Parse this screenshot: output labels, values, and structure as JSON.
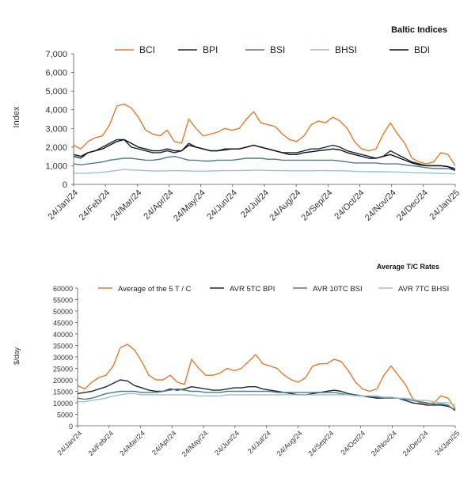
{
  "chart_data": [
    {
      "type": "line",
      "title": "Baltic Indices",
      "ylabel": "Index",
      "xlabel": "",
      "ylim": [
        0,
        7000
      ],
      "yticks": [
        "0",
        "1,000",
        "2,000",
        "3,000",
        "4,000",
        "5,000",
        "6,000",
        "7,000"
      ],
      "xticks": [
        "24/Jan/24",
        "24/Feb/24",
        "24/Mar/24",
        "24/Apr/24",
        "24/May/24",
        "24/Jun/24",
        "24/Jul/24",
        "24/Aug/24",
        "24/Sep/24",
        "24/Oct/24",
        "24/Nov/24",
        "24/Dec/24",
        "24/Jan/25"
      ],
      "legend_position": "top",
      "grid": false,
      "series": [
        {
          "name": "BCI",
          "color": "#e07b2e",
          "values": [
            2100,
            1900,
            2300,
            2500,
            2600,
            3200,
            4200,
            4300,
            4100,
            3600,
            2900,
            2700,
            2600,
            2900,
            2300,
            2200,
            3500,
            3000,
            2600,
            2700,
            2800,
            3000,
            2900,
            3000,
            3500,
            3900,
            3300,
            3200,
            3100,
            2700,
            2400,
            2300,
            2600,
            3200,
            3400,
            3300,
            3600,
            3400,
            3000,
            2300,
            1900,
            1800,
            1900,
            2700,
            3300,
            2700,
            2200,
            1400,
            1200,
            1100,
            1200,
            1700,
            1600,
            1000
          ]
        },
        {
          "name": "BPI",
          "color": "#1b2a38",
          "values": [
            1500,
            1400,
            1700,
            1800,
            2000,
            2200,
            2400,
            2400,
            2000,
            1900,
            1800,
            1700,
            1700,
            1800,
            1700,
            1800,
            2200,
            2000,
            1900,
            1800,
            1800,
            1900,
            1900,
            1900,
            2000,
            2100,
            2000,
            1900,
            1800,
            1700,
            1700,
            1700,
            1800,
            1900,
            1900,
            2000,
            2100,
            2000,
            1800,
            1700,
            1600,
            1500,
            1400,
            1500,
            1800,
            1600,
            1400,
            1200,
            1100,
            1000,
            1000,
            1000,
            950,
            850
          ]
        },
        {
          "name": "BSI",
          "color": "#4f7b86",
          "values": [
            1100,
            1050,
            1100,
            1150,
            1200,
            1300,
            1350,
            1400,
            1400,
            1350,
            1300,
            1300,
            1350,
            1450,
            1500,
            1400,
            1300,
            1300,
            1250,
            1250,
            1300,
            1300,
            1300,
            1350,
            1400,
            1400,
            1400,
            1350,
            1350,
            1300,
            1300,
            1300,
            1300,
            1300,
            1300,
            1300,
            1300,
            1250,
            1200,
            1150,
            1150,
            1150,
            1150,
            1100,
            1100,
            1100,
            1050,
            1000,
            950,
            900,
            850,
            850,
            850,
            750
          ]
        },
        {
          "name": "BHSI",
          "color": "#9cc4c8",
          "values": [
            600,
            590,
            600,
            620,
            650,
            700,
            750,
            800,
            770,
            760,
            740,
            720,
            720,
            730,
            740,
            730,
            720,
            710,
            710,
            720,
            730,
            740,
            740,
            740,
            750,
            760,
            760,
            750,
            740,
            740,
            730,
            730,
            730,
            730,
            740,
            740,
            730,
            730,
            720,
            700,
            690,
            680,
            680,
            680,
            670,
            660,
            650,
            630,
            620,
            610,
            600,
            590,
            580,
            560
          ]
        },
        {
          "name": "BDI",
          "color": "#111111",
          "values": [
            1600,
            1500,
            1700,
            1800,
            1900,
            2100,
            2300,
            2400,
            2200,
            2000,
            1900,
            1800,
            1800,
            1900,
            1800,
            1800,
            2100,
            2000,
            1900,
            1800,
            1800,
            1850,
            1900,
            1900,
            2000,
            2100,
            2000,
            1900,
            1800,
            1700,
            1600,
            1600,
            1700,
            1750,
            1800,
            1850,
            1900,
            1850,
            1700,
            1600,
            1500,
            1400,
            1400,
            1500,
            1600,
            1450,
            1300,
            1150,
            1050,
            1000,
            1000,
            1000,
            950,
            750
          ]
        }
      ]
    },
    {
      "type": "line",
      "title": "Average T/C Rates",
      "ylabel": "$/day",
      "xlabel": "",
      "ylim": [
        0,
        60000
      ],
      "yticks": [
        "0",
        "5000",
        "10000",
        "15000",
        "20000",
        "25000",
        "30000",
        "35000",
        "40000",
        "45000",
        "50000",
        "55000",
        "60000"
      ],
      "xticks": [
        "24/Jan/24",
        "24/Feb/24",
        "24/Mar/24",
        "24/Apr/24",
        "24/May/24",
        "24/Jun/24",
        "24/Jul/24",
        "24/Aug/24",
        "24/Sep/24",
        "24/Oct/24",
        "24/Nov/24",
        "24/Dec/24",
        "24/Jan/25"
      ],
      "legend_position": "top",
      "grid": false,
      "series": [
        {
          "name": "Average of the 5 T / C",
          "color": "#e07b2e",
          "values": [
            17500,
            16000,
            19000,
            21000,
            22000,
            26000,
            34000,
            35500,
            33000,
            28000,
            22000,
            20000,
            20000,
            22000,
            19000,
            18000,
            29000,
            25000,
            22000,
            22000,
            23000,
            25000,
            24000,
            25000,
            28000,
            31000,
            27000,
            26000,
            25000,
            22000,
            20000,
            19000,
            21000,
            26000,
            27000,
            27000,
            29000,
            28000,
            24000,
            19000,
            16000,
            15000,
            16000,
            22000,
            26000,
            22000,
            18000,
            12000,
            10000,
            9500,
            10000,
            13000,
            12000,
            7500
          ]
        },
        {
          "name": "AVR 5TC BPI",
          "color": "#1b2a38",
          "values": [
            14000,
            14500,
            15000,
            16000,
            17000,
            18500,
            20000,
            19500,
            17500,
            16500,
            15500,
            15000,
            15000,
            16000,
            15500,
            16000,
            17000,
            16500,
            16000,
            15500,
            15500,
            16000,
            16500,
            16500,
            17000,
            17000,
            16000,
            15500,
            15000,
            14500,
            14000,
            13500,
            13500,
            14000,
            14500,
            15000,
            15500,
            15000,
            14000,
            13500,
            13000,
            12500,
            12000,
            12000,
            12500,
            12000,
            11000,
            10000,
            9500,
            9000,
            9000,
            9000,
            8500,
            7000
          ]
        },
        {
          "name": "AVR 10TC BSI",
          "color": "#4f7b86",
          "values": [
            12000,
            11500,
            12000,
            13000,
            14000,
            14500,
            15000,
            15000,
            15000,
            14500,
            14500,
            14500,
            15000,
            15500,
            16000,
            15500,
            15000,
            15000,
            14500,
            14500,
            14500,
            15000,
            15000,
            15000,
            15000,
            15000,
            15000,
            15000,
            14500,
            14500,
            14500,
            14500,
            14500,
            14500,
            14500,
            14500,
            14500,
            14000,
            13500,
            13500,
            13000,
            13000,
            12500,
            12000,
            12000,
            12000,
            11500,
            11000,
            10500,
            10000,
            9500,
            9500,
            9000,
            6500
          ]
        },
        {
          "name": "AVR 7TC BHSI",
          "color": "#9cc4c8",
          "values": [
            10500,
            10500,
            11000,
            11500,
            12000,
            13000,
            13500,
            14000,
            14000,
            13500,
            13500,
            13500,
            13500,
            13500,
            13500,
            13500,
            13500,
            13000,
            13000,
            13000,
            13000,
            13500,
            13500,
            13500,
            13500,
            13500,
            13500,
            13500,
            13500,
            13500,
            13500,
            13500,
            13500,
            13500,
            13500,
            13500,
            13500,
            13500,
            13500,
            13000,
            13000,
            13000,
            13000,
            12500,
            12500,
            12000,
            12000,
            11500,
            11000,
            11000,
            10500,
            10000,
            10000,
            9000
          ]
        }
      ]
    }
  ]
}
